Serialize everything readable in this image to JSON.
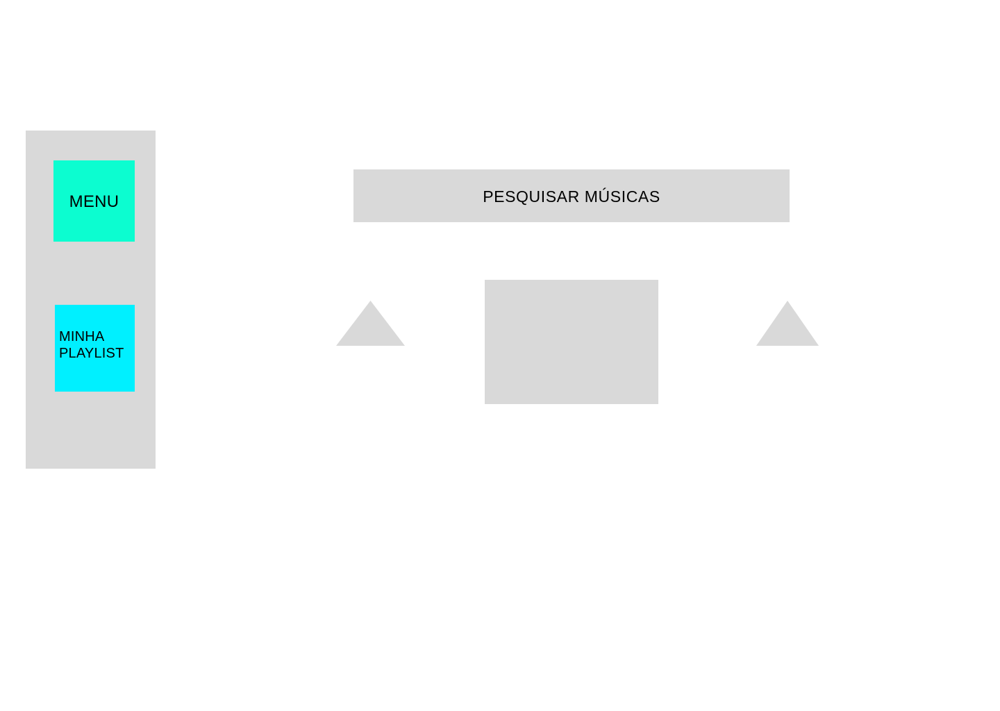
{
  "sidebar": {
    "menu_label": "MENU",
    "playlist_label": "MINHA PLAYLIST"
  },
  "search": {
    "label": "PESQUISAR MÚSICAS"
  },
  "player": {
    "prev_icon": "triangle-up-icon",
    "next_icon": "triangle-up-icon"
  },
  "colors": {
    "background": "#ffffff",
    "placeholder_gray": "#d9d9d9",
    "menu_accent": "#0cfdd0",
    "playlist_accent": "#00f0ff"
  }
}
